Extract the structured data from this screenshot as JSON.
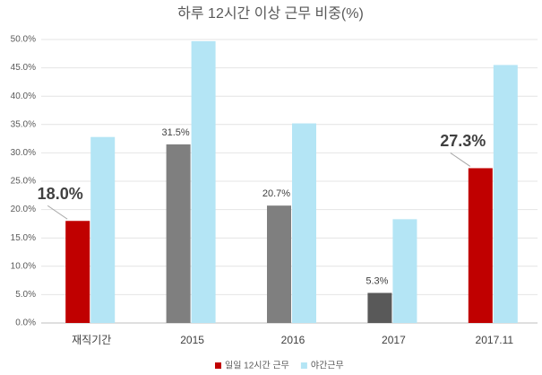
{
  "chart_data": {
    "type": "bar",
    "title": "하루 12시간 이상 근무 비중(%)",
    "categories": [
      "재직기간",
      "2015",
      "2016",
      "2017",
      "2017.11"
    ],
    "series": [
      {
        "name": "일일 12시간 근무",
        "color": "#c00000",
        "colors": [
          "#c00000",
          "#7f7f7f",
          "#7f7f7f",
          "#595959",
          "#c00000"
        ],
        "values": [
          18.0,
          31.5,
          20.7,
          5.3,
          27.3
        ],
        "value_labels": [
          "18.0%",
          "31.5%",
          "20.7%",
          "5.3%",
          "27.3%"
        ]
      },
      {
        "name": "야간근무",
        "color": "#b4e5f5",
        "values": [
          32.8,
          49.7,
          35.2,
          18.3,
          45.5
        ]
      }
    ],
    "ylim": [
      0,
      50
    ],
    "yticks": [
      {
        "value": 0,
        "label": "0.0%"
      },
      {
        "value": 5,
        "label": "5.0%"
      },
      {
        "value": 10,
        "label": "10.0%"
      },
      {
        "value": 15,
        "label": "15.0%"
      },
      {
        "value": 20,
        "label": "20.0%"
      },
      {
        "value": 25,
        "label": "25.0%"
      },
      {
        "value": 30,
        "label": "30.0%"
      },
      {
        "value": 35,
        "label": "35.0%"
      },
      {
        "value": 40,
        "label": "40.0%"
      },
      {
        "value": 45,
        "label": "45.0%"
      },
      {
        "value": 50,
        "label": "50.0%"
      }
    ],
    "grid": true,
    "legend": "bottom"
  }
}
